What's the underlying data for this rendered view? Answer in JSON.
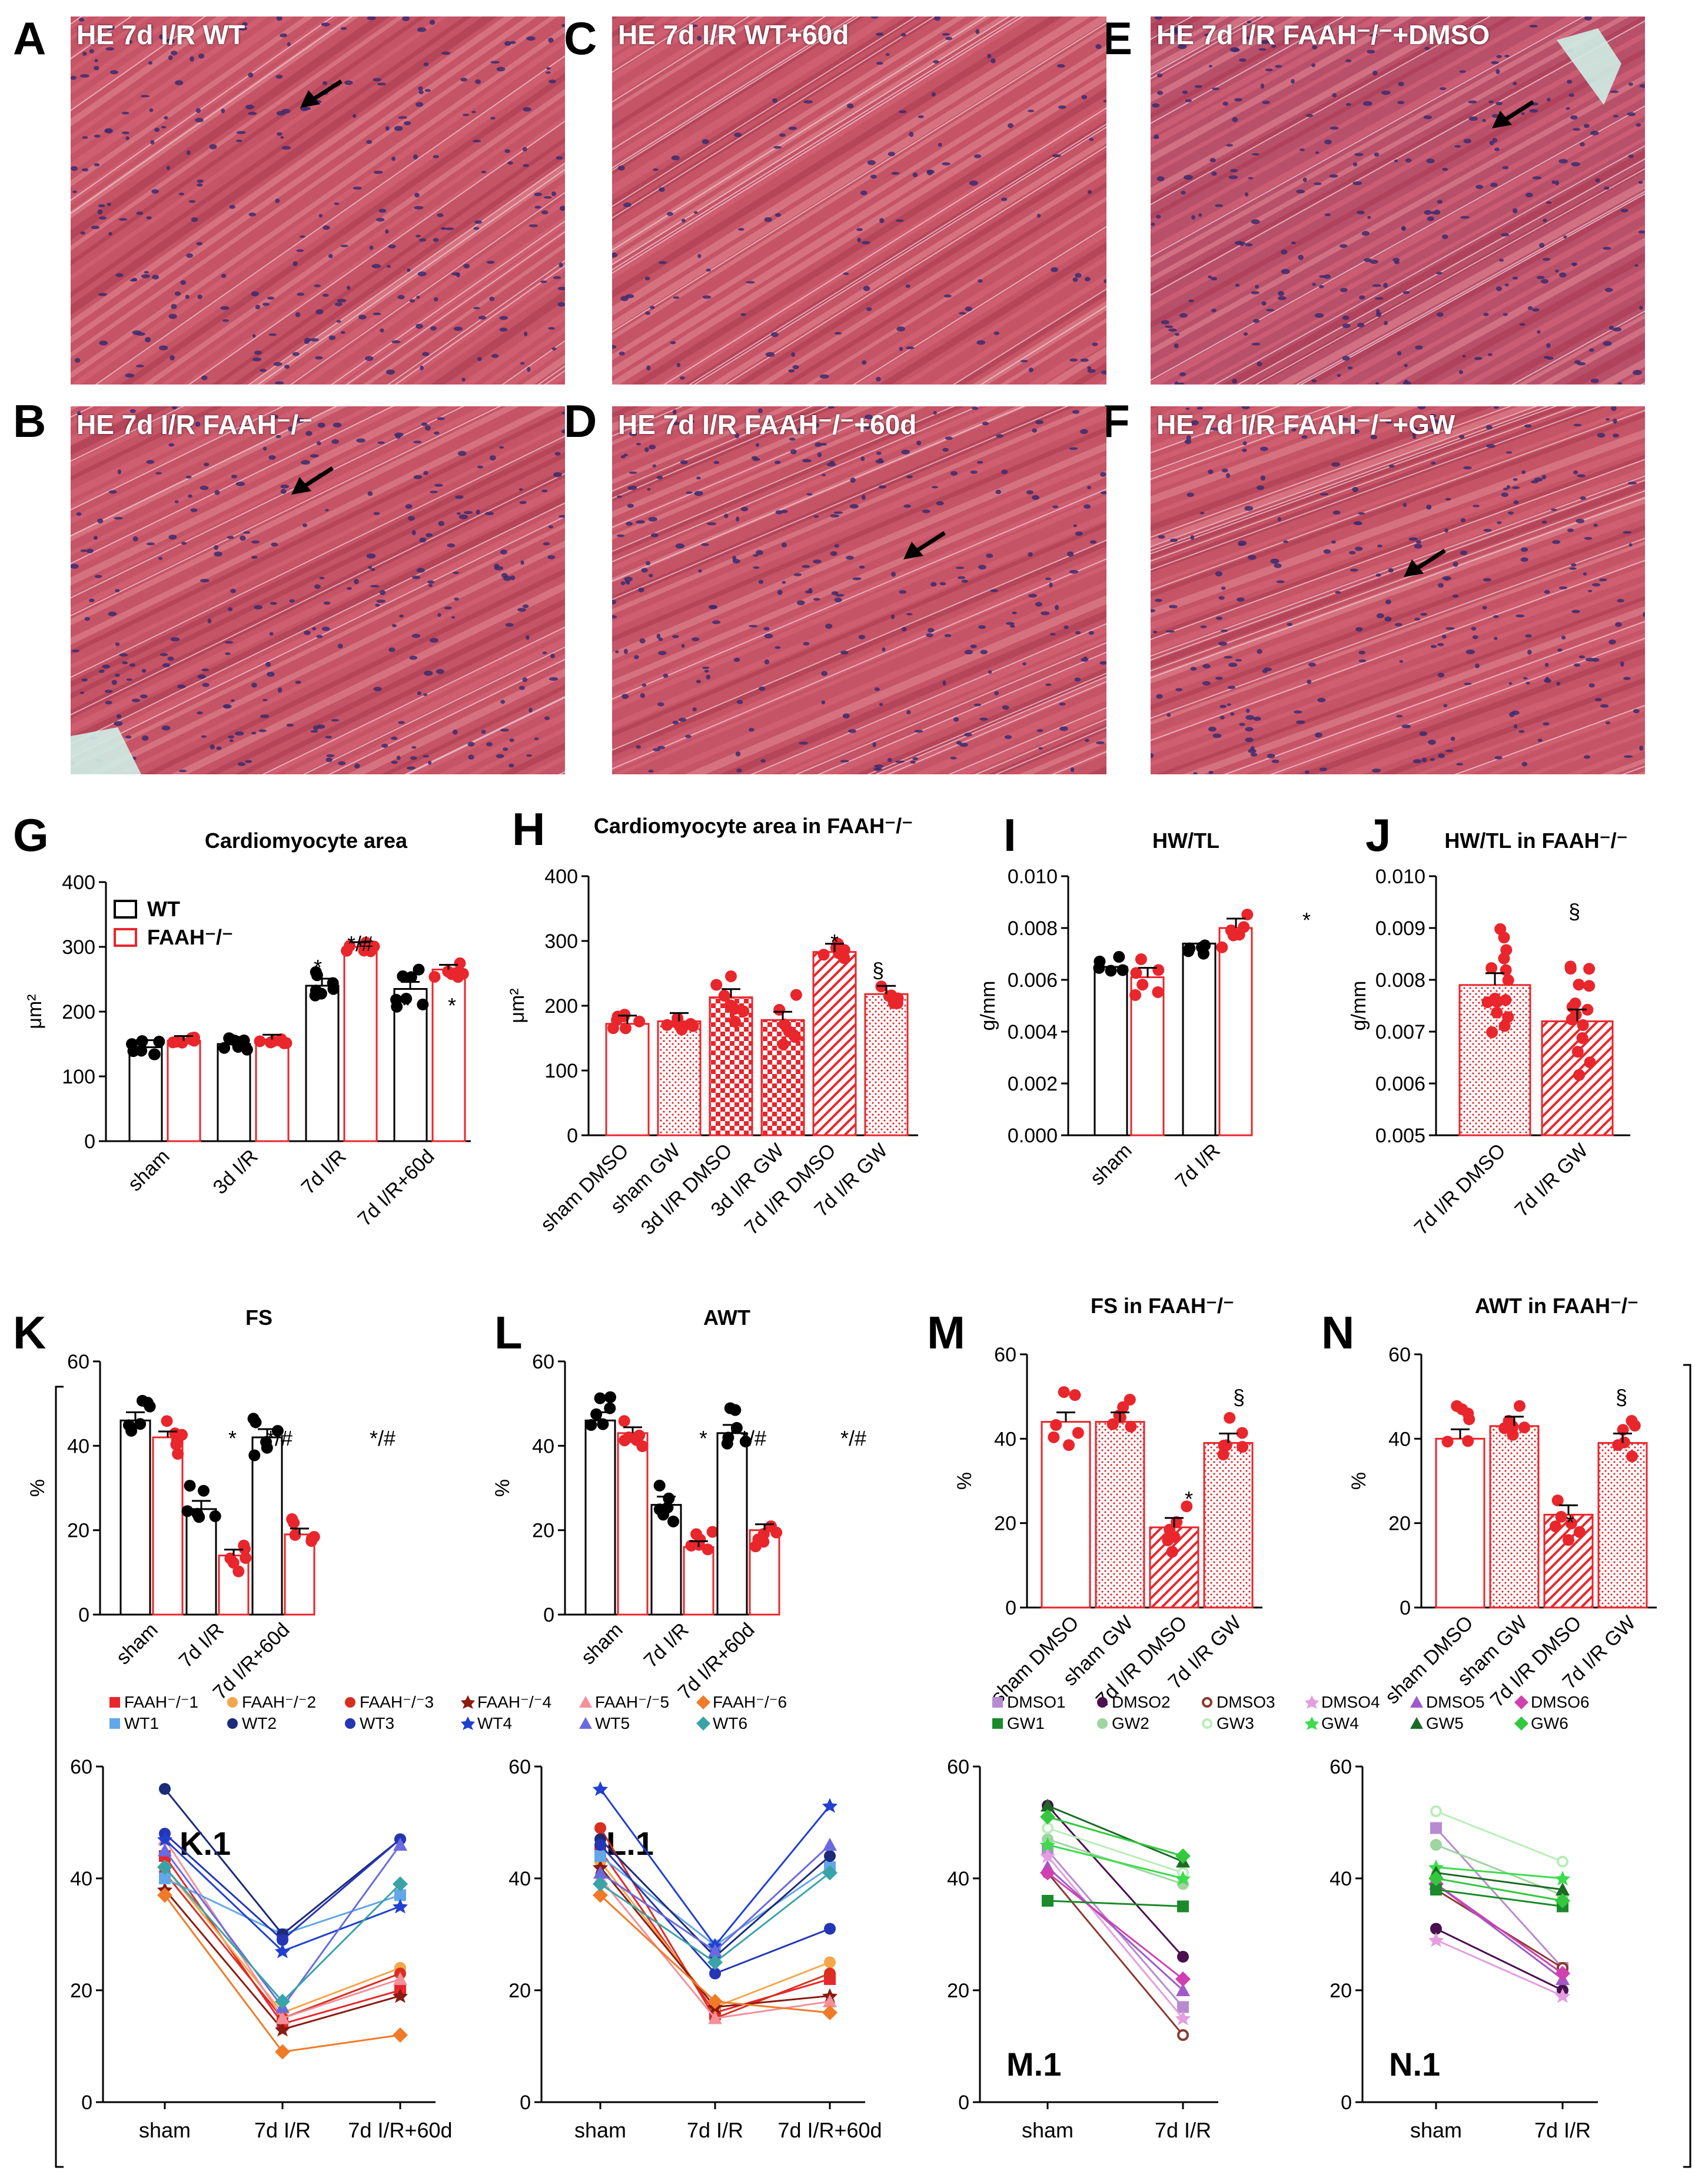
{
  "panels_photo": [
    {
      "letter": "A",
      "caption": "HE 7d I/R WT",
      "arrow": true
    },
    {
      "letter": "C",
      "caption": "HE 7d I/R WT+60d",
      "arrow": false
    },
    {
      "letter": "E",
      "caption": "HE 7d I/R FAAH⁻/⁻+DMSO",
      "arrow": true
    },
    {
      "letter": "B",
      "caption": "HE 7d I/R FAAH⁻/⁻",
      "arrow": true
    },
    {
      "letter": "D",
      "caption": "HE 7d I/R FAAH⁻/⁻+60d",
      "arrow": true
    },
    {
      "letter": "F",
      "caption": "HE 7d I/R FAAH⁻/⁻+GW",
      "arrow": true
    }
  ],
  "colors": {
    "wt": "#000000",
    "ko": "#e8262c",
    "stain_bg": "#c8505e",
    "nuclei": "#3b2b6e"
  },
  "chart_data": [
    {
      "id": "G",
      "type": "bar",
      "title": "Cardiomyocyte area",
      "ylabel": "μm²",
      "ylim": [
        0,
        400
      ],
      "yticks": [
        0,
        100,
        200,
        300,
        400
      ],
      "categories": [
        "sham",
        "3d I/R",
        "7d I/R",
        "7d I/R+60d"
      ],
      "legend": [
        "WT",
        "FAAH⁻/⁻"
      ],
      "series": [
        {
          "name": "WT",
          "values": [
            145,
            150,
            240,
            235
          ]
        },
        {
          "name": "FAAH⁻/⁻",
          "values": [
            155,
            157,
            300,
            265
          ]
        }
      ],
      "annotations": [
        "*",
        "*/#",
        "*",
        "*"
      ]
    },
    {
      "id": "H",
      "type": "bar",
      "title": "Cardiomyocyte area in FAAH⁻/⁻",
      "ylabel": "μm²",
      "ylim": [
        0,
        400
      ],
      "yticks": [
        0,
        100,
        200,
        300,
        400
      ],
      "categories": [
        "sham DMSO",
        "sham GW",
        "3d I/R DMSO",
        "3d I/R GW",
        "7d I/R DMSO",
        "7d I/R GW"
      ],
      "values": [
        172,
        176,
        213,
        178,
        283,
        218
      ],
      "annotations": [
        "*",
        "§"
      ]
    },
    {
      "id": "I",
      "type": "bar",
      "title": "HW/TL",
      "ylabel": "g/mm",
      "ylim": [
        0,
        0.01
      ],
      "yticks": [
        "0.000",
        "0.002",
        "0.004",
        "0.006",
        "0.008",
        "0.010"
      ],
      "categories": [
        "sham",
        "7d I/R"
      ],
      "series": [
        {
          "name": "WT",
          "values": [
            0.0065,
            0.0074
          ]
        },
        {
          "name": "FAAH⁻/⁻",
          "values": [
            0.0061,
            0.008
          ]
        }
      ],
      "annotations": [
        "*"
      ]
    },
    {
      "id": "J",
      "type": "bar",
      "title": "HW/TL in FAAH⁻/⁻",
      "ylabel": "g/mm",
      "ylim": [
        0.005,
        0.01
      ],
      "yticks": [
        "0.005",
        "0.006",
        "0.007",
        "0.008",
        "0.009",
        "0.010"
      ],
      "categories": [
        "7d I/R DMSO",
        "7d I/R GW"
      ],
      "values": [
        0.0079,
        0.0072
      ],
      "annotations": [
        "§"
      ]
    },
    {
      "id": "K",
      "type": "bar",
      "title": "FS",
      "ylabel": "%",
      "ylim": [
        0,
        60
      ],
      "yticks": [
        0,
        20,
        40,
        60
      ],
      "categories": [
        "sham",
        "7d I/R",
        "7d I/R+60d"
      ],
      "series": [
        {
          "name": "WT",
          "values": [
            46,
            25,
            42
          ]
        },
        {
          "name": "FAAH⁻/⁻",
          "values": [
            42,
            14,
            19
          ]
        }
      ],
      "annotations": [
        "*",
        "*/#",
        "*/#"
      ]
    },
    {
      "id": "L",
      "type": "bar",
      "title": "AWT",
      "ylabel": "%",
      "ylim": [
        0,
        60
      ],
      "yticks": [
        0,
        20,
        40,
        60
      ],
      "categories": [
        "sham",
        "7d I/R",
        "7d I/R+60d"
      ],
      "series": [
        {
          "name": "WT",
          "values": [
            46,
            26,
            43
          ]
        },
        {
          "name": "FAAH⁻/⁻",
          "values": [
            43,
            16,
            20
          ]
        }
      ],
      "annotations": [
        "*",
        "*/#",
        "*/#"
      ]
    },
    {
      "id": "M",
      "type": "bar",
      "title": "FS in FAAH⁻/⁻",
      "ylabel": "%",
      "ylim": [
        0,
        60
      ],
      "yticks": [
        0,
        20,
        40,
        60
      ],
      "categories": [
        "sham DMSO",
        "sham GW",
        "7d I/R DMSO",
        "7d  I/R GW"
      ],
      "values": [
        44,
        44,
        19,
        39
      ],
      "annotations": [
        "*",
        "§"
      ]
    },
    {
      "id": "N",
      "type": "bar",
      "title": "AWT in FAAH⁻/⁻",
      "ylabel": "%",
      "ylim": [
        0,
        60
      ],
      "yticks": [
        0,
        20,
        40,
        60
      ],
      "categories": [
        "sham DMSO",
        "sham GW",
        "7d I/R DMSO",
        "7d I/R GW"
      ],
      "values": [
        40,
        43,
        22,
        39
      ],
      "annotations": [
        "*",
        "§"
      ]
    },
    {
      "id": "K.1",
      "type": "line",
      "ylim": [
        0,
        60
      ],
      "yticks": [
        0,
        20,
        40,
        60
      ],
      "categories": [
        "sham",
        "7d I/R",
        "7d I/R+60d"
      ],
      "legend": [
        "FAAH⁻/⁻1",
        "FAAH⁻/⁻2",
        "FAAH⁻/⁻3",
        "FAAH⁻/⁻4",
        "FAAH⁻/⁻5",
        "FAAH⁻/⁻6",
        "WT1",
        "WT2",
        "WT3",
        "WT4",
        "WT5",
        "WT6"
      ]
    },
    {
      "id": "L.1",
      "type": "line",
      "ylim": [
        0,
        60
      ],
      "yticks": [
        0,
        20,
        40,
        60
      ],
      "categories": [
        "sham",
        "7d I/R",
        "7d I/R+60d"
      ]
    },
    {
      "id": "M.1",
      "type": "line",
      "ylim": [
        0,
        60
      ],
      "yticks": [
        0,
        20,
        40,
        60
      ],
      "categories": [
        "sham",
        "7d I/R"
      ],
      "legend": [
        "DMSO1",
        "DMSO2",
        "DMSO3",
        "DMSO4",
        "DMSO5",
        "DMSO6",
        "GW1",
        "GW2",
        "GW3",
        "GW4",
        "GW5",
        "GW6"
      ]
    },
    {
      "id": "N.1",
      "type": "line",
      "ylim": [
        0,
        60
      ],
      "yticks": [
        0,
        20,
        40,
        60
      ],
      "categories": [
        "sham",
        "7d I/R"
      ]
    }
  ]
}
